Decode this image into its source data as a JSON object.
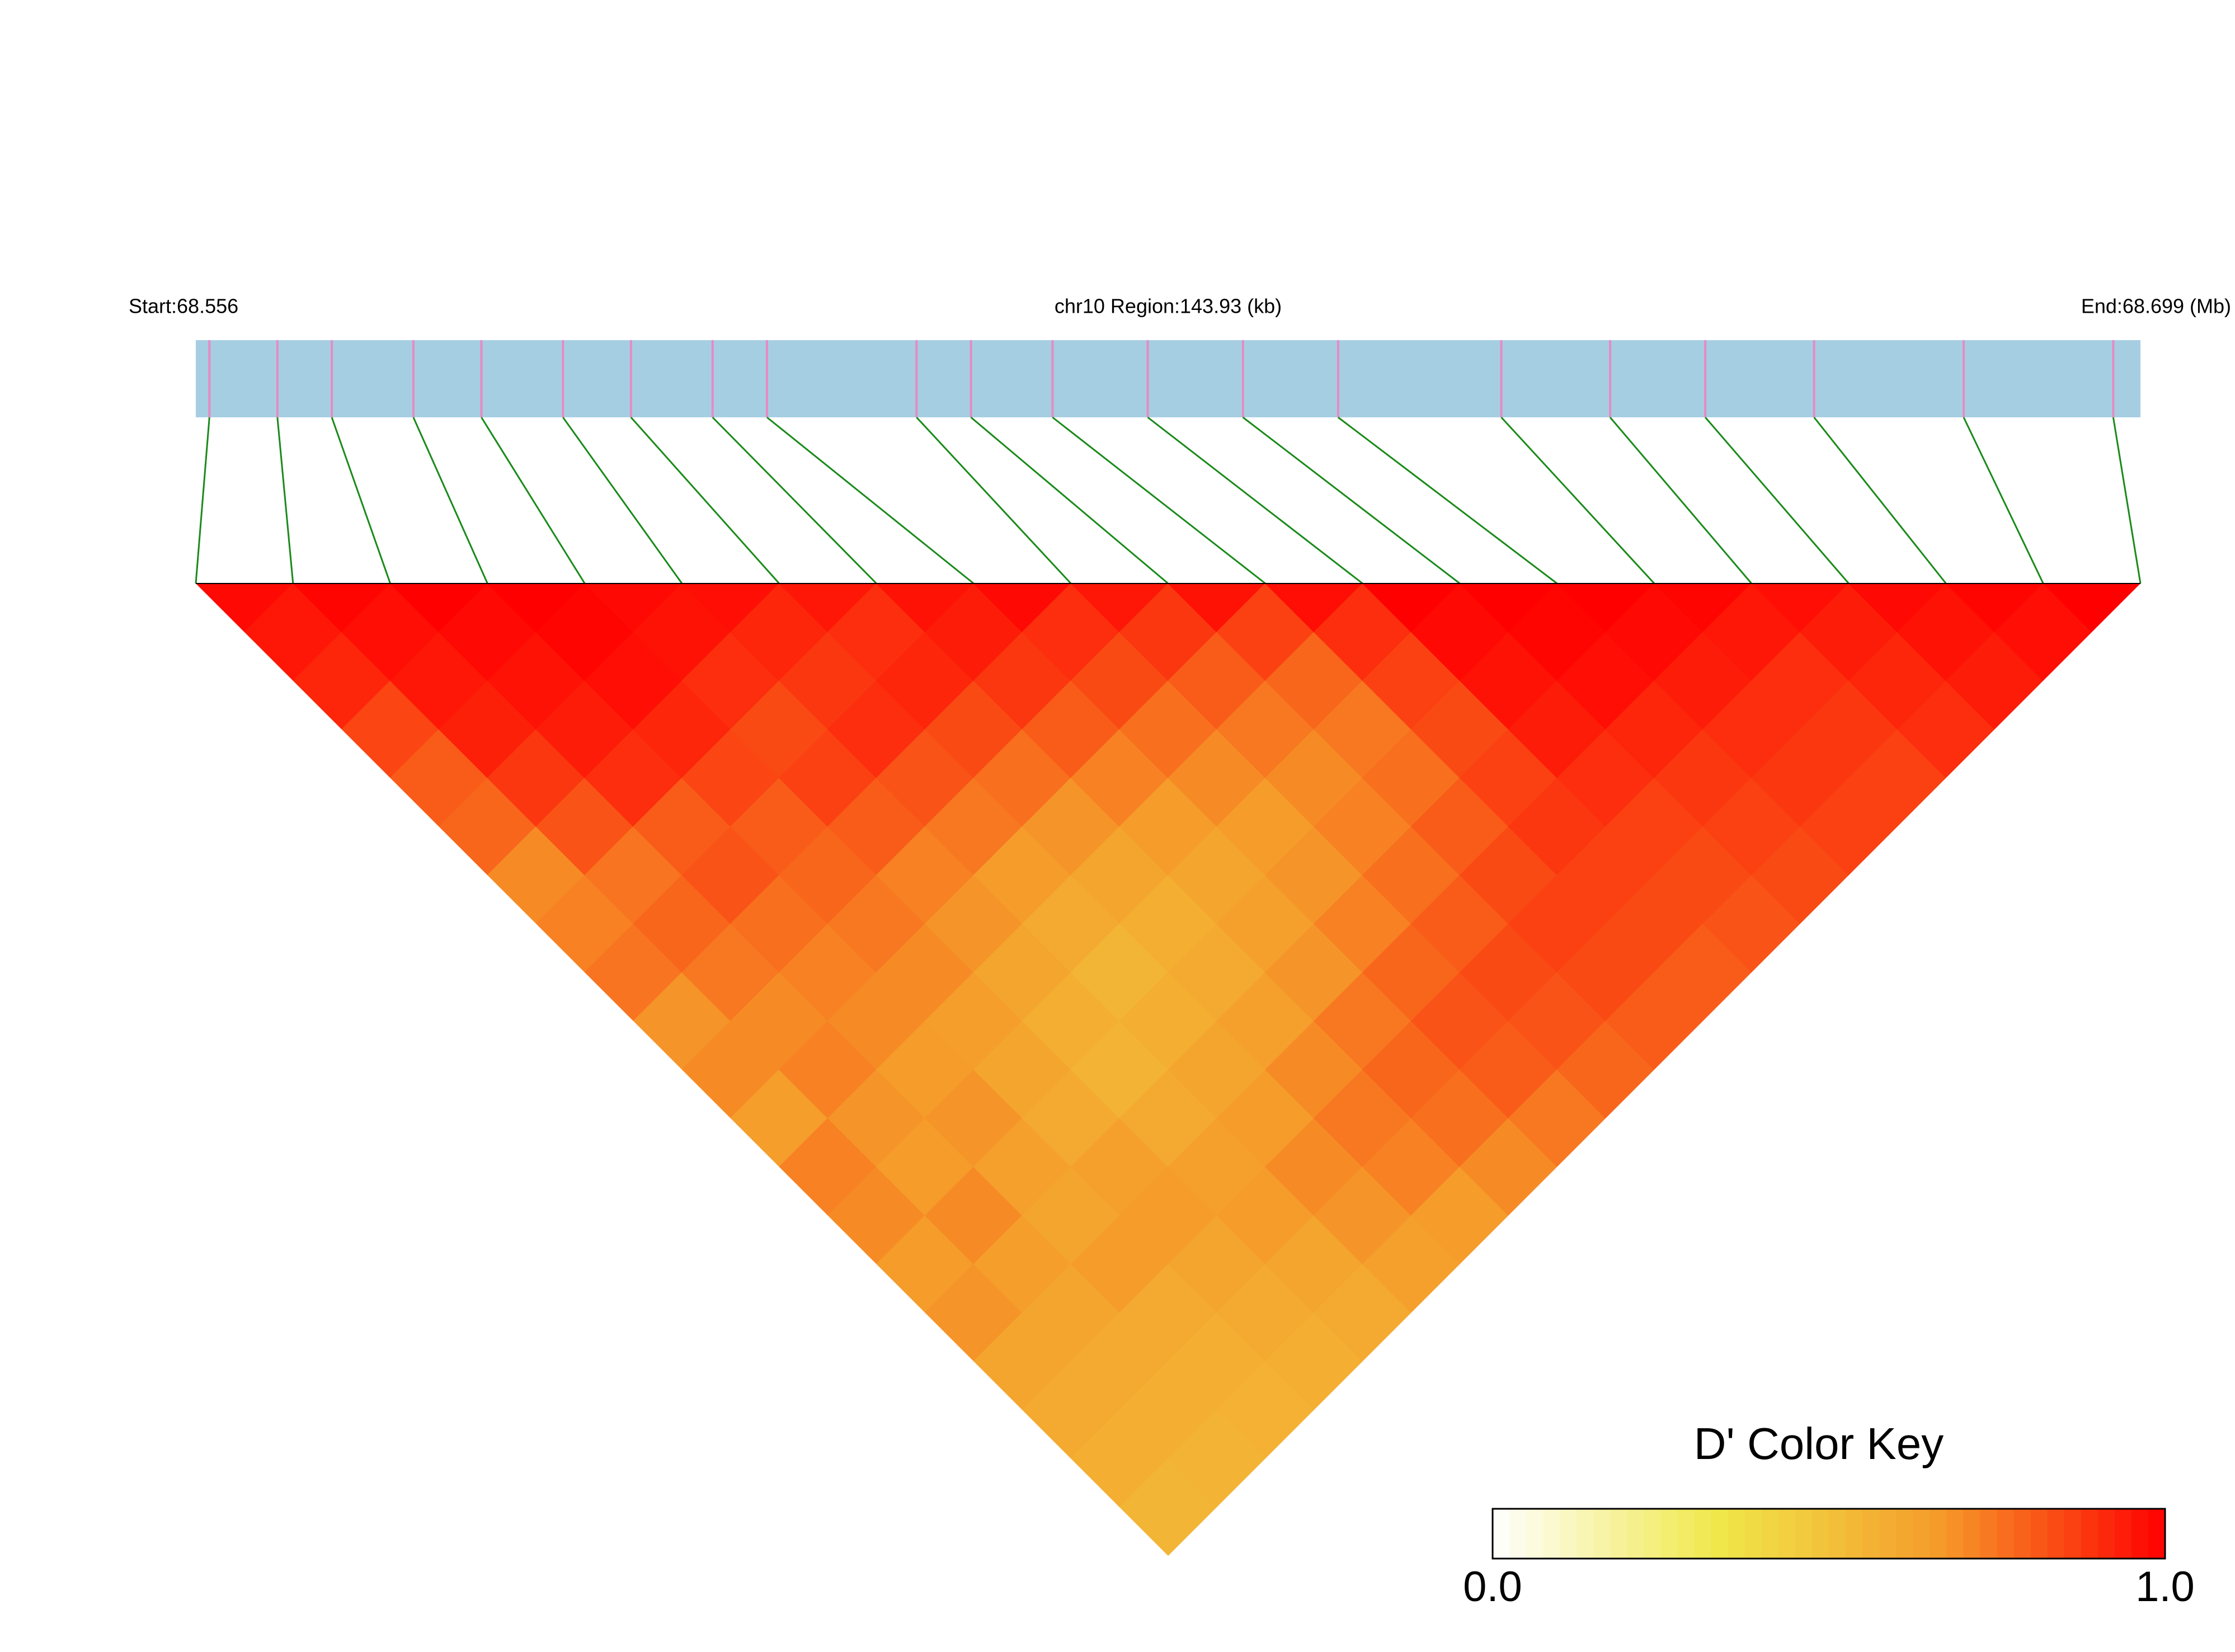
{
  "chart_data": {
    "type": "ld-heatmap",
    "start_label": "Start:68.556",
    "region_label": "chr10 Region:143.93 (kb)",
    "end_label": "End:68.699 (Mb)",
    "xlim": [
      68.556,
      68.699
    ],
    "positions": [
      68.557,
      68.562,
      68.566,
      68.572,
      68.577,
      68.583,
      68.588,
      68.594,
      68.598,
      68.609,
      68.613,
      68.619,
      68.626,
      68.633,
      68.64,
      68.652,
      68.66,
      68.667,
      68.675,
      68.686,
      68.697
    ],
    "dprime": [
      [
        0.98,
        0.95,
        0.92,
        0.85,
        0.8,
        0.78,
        0.7,
        0.72,
        0.75,
        0.68,
        0.7,
        0.65,
        0.72,
        0.7,
        0.66,
        0.68,
        0.62,
        0.6,
        0.58,
        0.55
      ],
      [
        0.99,
        0.97,
        0.95,
        0.93,
        0.88,
        0.82,
        0.75,
        0.78,
        0.74,
        0.7,
        0.72,
        0.68,
        0.66,
        0.7,
        0.65,
        0.62,
        0.6,
        0.58,
        0.56
      ],
      [
        1.0,
        0.98,
        0.96,
        0.94,
        0.9,
        0.8,
        0.82,
        0.76,
        0.72,
        0.7,
        0.66,
        0.68,
        0.64,
        0.62,
        0.66,
        0.6,
        0.58,
        0.57
      ],
      [
        1.0,
        0.99,
        0.97,
        0.92,
        0.85,
        0.8,
        0.78,
        0.74,
        0.7,
        0.65,
        0.62,
        0.6,
        0.64,
        0.66,
        0.62,
        0.6,
        0.58
      ],
      [
        0.98,
        0.96,
        0.9,
        0.84,
        0.86,
        0.8,
        0.72,
        0.68,
        0.62,
        0.58,
        0.56,
        0.6,
        0.64,
        0.66,
        0.62,
        0.6
      ],
      [
        0.97,
        0.92,
        0.88,
        0.9,
        0.82,
        0.74,
        0.66,
        0.6,
        0.55,
        0.58,
        0.62,
        0.66,
        0.7,
        0.68,
        0.64
      ],
      [
        0.95,
        0.9,
        0.92,
        0.84,
        0.76,
        0.68,
        0.62,
        0.58,
        0.6,
        0.64,
        0.7,
        0.74,
        0.72,
        0.66
      ],
      [
        0.96,
        0.94,
        0.88,
        0.8,
        0.72,
        0.66,
        0.62,
        0.64,
        0.68,
        0.74,
        0.78,
        0.76,
        0.7
      ],
      [
        0.98,
        0.9,
        0.84,
        0.76,
        0.7,
        0.66,
        0.68,
        0.72,
        0.78,
        0.82,
        0.8,
        0.74
      ],
      [
        0.95,
        0.88,
        0.8,
        0.74,
        0.7,
        0.72,
        0.76,
        0.8,
        0.84,
        0.82,
        0.78
      ],
      [
        0.96,
        0.86,
        0.78,
        0.74,
        0.76,
        0.8,
        0.84,
        0.86,
        0.84,
        0.8
      ],
      [
        0.97,
        0.9,
        0.86,
        0.84,
        0.86,
        0.88,
        0.86,
        0.84,
        0.8
      ],
      [
        1.0,
        0.98,
        0.96,
        0.94,
        0.9,
        0.86,
        0.84,
        0.82
      ],
      [
        1.0,
        0.99,
        0.97,
        0.92,
        0.88,
        0.86,
        0.84
      ],
      [
        1.0,
        0.98,
        0.94,
        0.9,
        0.88,
        0.86
      ],
      [
        0.99,
        0.95,
        0.9,
        0.88,
        0.86
      ],
      [
        0.97,
        0.94,
        0.92,
        0.9
      ],
      [
        0.98,
        0.96,
        0.94
      ],
      [
        0.99,
        0.97
      ],
      [
        1.0
      ]
    ],
    "colormap": [
      "#ffffff",
      "#f0e84a",
      "#f59a2a",
      "#ff0000"
    ],
    "track_color": "#a6cee3",
    "snp_color": "#e78ac3",
    "link_color": "#1a8a1a",
    "colorbar": {
      "title": "D' Color Key",
      "lim": [
        0,
        1
      ],
      "ticks": [
        {
          "value": 0,
          "label": "0.0"
        },
        {
          "value": 1,
          "label": "1.0"
        }
      ]
    }
  }
}
